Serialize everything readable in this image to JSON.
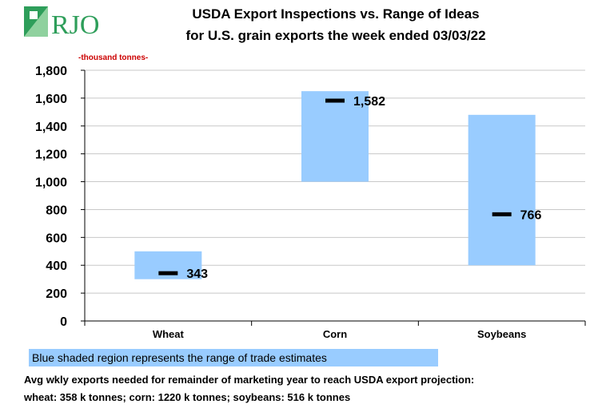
{
  "logo": {
    "text": "RJO",
    "accent": "#2e9e5a"
  },
  "title_line1": "USDA Export Inspections vs. Range of Ideas",
  "title_line2": "for U.S. grain exports the week ended 03/03/22",
  "unit_label": "-thousand tonnes-",
  "legend_text": "Blue shaded region represents the range of trade estimates",
  "note_line1": "Avg wkly exports needed for remainder of marketing year to reach USDA export projection:",
  "note_line2": "wheat: 358 k tonnes; corn: 1220 k tonnes; soybeans: 516 k tonnes",
  "colors": {
    "range": "#99ccff",
    "actual": "#000000",
    "grid": "#c8c8c8"
  },
  "chart_data": {
    "type": "bar",
    "categories": [
      "Wheat",
      "Corn",
      "Soybeans"
    ],
    "ranges": [
      [
        300,
        500
      ],
      [
        1000,
        1650
      ],
      [
        400,
        1480
      ]
    ],
    "actual_values": [
      343,
      1582,
      766
    ],
    "actual_labels": [
      "343",
      "1,582",
      "766"
    ],
    "ylim": [
      0,
      1800
    ],
    "yticks": [
      0,
      200,
      400,
      600,
      800,
      1000,
      1200,
      1400,
      1600,
      1800
    ],
    "ytick_labels": [
      "0",
      "200",
      "400",
      "600",
      "800",
      "1,000",
      "1,200",
      "1,400",
      "1,600",
      "1,800"
    ],
    "grid": true
  }
}
